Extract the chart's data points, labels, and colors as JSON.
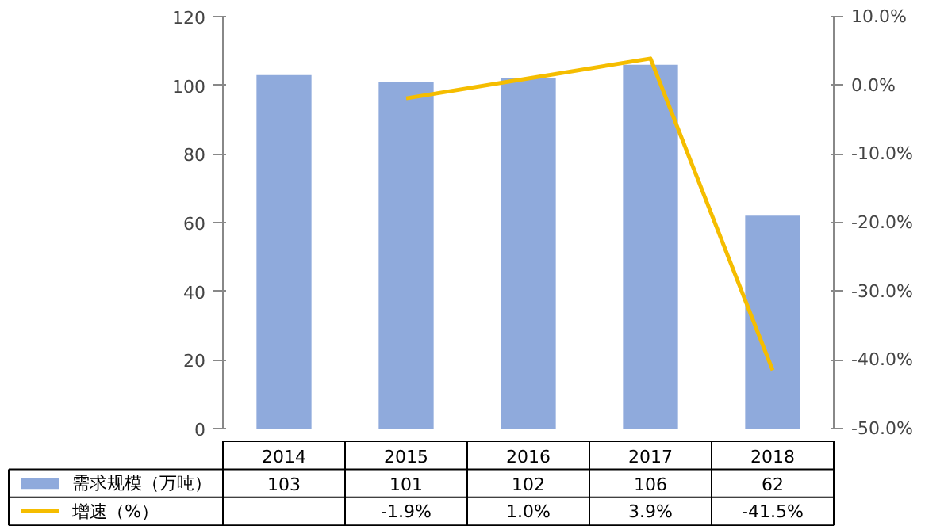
{
  "chart_data": {
    "type": "bar",
    "categories": [
      "2014",
      "2015",
      "2016",
      "2017",
      "2018"
    ],
    "series": [
      {
        "name": "需求规模（万吨）",
        "color": "#8faadc",
        "values": [
          103,
          101,
          102,
          106,
          62
        ],
        "value_labels": [
          "103",
          "101",
          "102",
          "106",
          "62"
        ]
      },
      {
        "name": "增速（%）",
        "type": "line",
        "axis": "y2",
        "color": "#f5bd00",
        "values": [
          null,
          -1.9,
          1.0,
          3.9,
          -41.5
        ],
        "value_labels": [
          null,
          "-1.9%",
          "1.0%",
          "3.9%",
          "-41.5%"
        ]
      }
    ],
    "ylim": [
      0,
      120
    ],
    "yticks": [
      0,
      20,
      40,
      60,
      80,
      100,
      120
    ],
    "y2lim": [
      -50,
      10
    ],
    "y2ticks": [
      {
        "value": -50,
        "label": "-50.0%"
      },
      {
        "value": -40,
        "label": "-40.0%"
      },
      {
        "value": -30,
        "label": "-30.0%"
      },
      {
        "value": -20,
        "label": "-20.0%"
      },
      {
        "value": -10,
        "label": "-10.0%"
      },
      {
        "value": 0,
        "label": "0.0%"
      },
      {
        "value": 10,
        "label": "10.0%"
      }
    ],
    "grid": false,
    "legend": "bottom"
  }
}
